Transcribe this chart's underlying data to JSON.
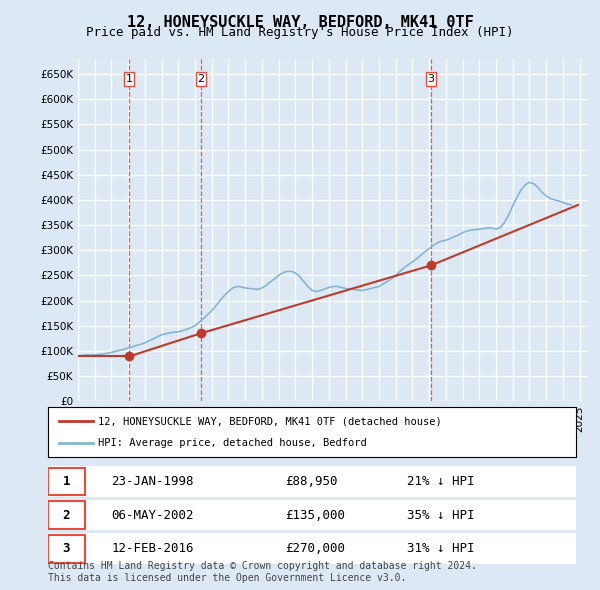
{
  "title": "12, HONEYSUCKLE WAY, BEDFORD, MK41 0TF",
  "subtitle": "Price paid vs. HM Land Registry's House Price Index (HPI)",
  "background_color": "#dce9f5",
  "plot_bg_color": "#dce9f5",
  "grid_color": "#ffffff",
  "ylabel": "",
  "ylim": [
    0,
    680000
  ],
  "yticks": [
    0,
    50000,
    100000,
    150000,
    200000,
    250000,
    300000,
    350000,
    400000,
    450000,
    500000,
    550000,
    600000,
    650000
  ],
  "ytick_labels": [
    "£0",
    "£50K",
    "£100K",
    "£150K",
    "£200K",
    "£250K",
    "£300K",
    "£350K",
    "£400K",
    "£450K",
    "£500K",
    "£550K",
    "£600K",
    "£650K"
  ],
  "red_line_color": "#c0392b",
  "blue_line_color": "#85b4d4",
  "dashed_line_color": "#e74c3c",
  "sale_points": [
    {
      "date_idx": 3.1,
      "price": 88950,
      "label": "1",
      "date_str": "23-JAN-1998"
    },
    {
      "date_idx": 7.4,
      "price": 135000,
      "label": "2",
      "date_str": "06-MAY-2002"
    },
    {
      "date_idx": 21.1,
      "price": 270000,
      "label": "3",
      "date_str": "12-FEB-2016"
    }
  ],
  "legend_line1": "12, HONEYSUCKLE WAY, BEDFORD, MK41 0TF (detached house)",
  "legend_line2": "HPI: Average price, detached house, Bedford",
  "table_data": [
    {
      "num": "1",
      "date": "23-JAN-1998",
      "price": "£88,950",
      "hpi": "21% ↓ HPI"
    },
    {
      "num": "2",
      "date": "06-MAY-2002",
      "price": "£135,000",
      "hpi": "35% ↓ HPI"
    },
    {
      "num": "3",
      "date": "12-FEB-2016",
      "price": "£270,000",
      "hpi": "31% ↓ HPI"
    }
  ],
  "footer": "Contains HM Land Registry data © Crown copyright and database right 2024.\nThis data is licensed under the Open Government Licence v3.0.",
  "x_start_year": 1995,
  "x_end_year": 2025,
  "hpi_data_x": [
    1995.0,
    1995.25,
    1995.5,
    1995.75,
    1996.0,
    1996.25,
    1996.5,
    1996.75,
    1997.0,
    1997.25,
    1997.5,
    1997.75,
    1998.0,
    1998.25,
    1998.5,
    1998.75,
    1999.0,
    1999.25,
    1999.5,
    1999.75,
    2000.0,
    2000.25,
    2000.5,
    2000.75,
    2001.0,
    2001.25,
    2001.5,
    2001.75,
    2002.0,
    2002.25,
    2002.5,
    2002.75,
    2003.0,
    2003.25,
    2003.5,
    2003.75,
    2004.0,
    2004.25,
    2004.5,
    2004.75,
    2005.0,
    2005.25,
    2005.5,
    2005.75,
    2006.0,
    2006.25,
    2006.5,
    2006.75,
    2007.0,
    2007.25,
    2007.5,
    2007.75,
    2008.0,
    2008.25,
    2008.5,
    2008.75,
    2009.0,
    2009.25,
    2009.5,
    2009.75,
    2010.0,
    2010.25,
    2010.5,
    2010.75,
    2011.0,
    2011.25,
    2011.5,
    2011.75,
    2012.0,
    2012.25,
    2012.5,
    2012.75,
    2013.0,
    2013.25,
    2013.5,
    2013.75,
    2014.0,
    2014.25,
    2014.5,
    2014.75,
    2015.0,
    2015.25,
    2015.5,
    2015.75,
    2016.0,
    2016.25,
    2016.5,
    2016.75,
    2017.0,
    2017.25,
    2017.5,
    2017.75,
    2018.0,
    2018.25,
    2018.5,
    2018.75,
    2019.0,
    2019.25,
    2019.5,
    2019.75,
    2020.0,
    2020.25,
    2020.5,
    2020.75,
    2021.0,
    2021.25,
    2021.5,
    2021.75,
    2022.0,
    2022.25,
    2022.5,
    2022.75,
    2023.0,
    2023.25,
    2023.5,
    2023.75,
    2024.0,
    2024.25,
    2024.5
  ],
  "hpi_data_y": [
    90000,
    91000,
    92000,
    91500,
    92000,
    93000,
    94000,
    95000,
    97000,
    99000,
    101000,
    103000,
    106000,
    108000,
    111000,
    113000,
    116000,
    120000,
    124000,
    128000,
    132000,
    134000,
    136000,
    137000,
    138000,
    140000,
    143000,
    146000,
    150000,
    157000,
    164000,
    172000,
    180000,
    190000,
    200000,
    210000,
    218000,
    225000,
    228000,
    227000,
    225000,
    224000,
    223000,
    222000,
    225000,
    230000,
    237000,
    243000,
    250000,
    255000,
    258000,
    258000,
    255000,
    248000,
    238000,
    228000,
    220000,
    218000,
    220000,
    223000,
    226000,
    228000,
    228000,
    226000,
    224000,
    223000,
    222000,
    221000,
    220000,
    222000,
    224000,
    226000,
    228000,
    233000,
    238000,
    243000,
    250000,
    258000,
    265000,
    271000,
    277000,
    283000,
    290000,
    297000,
    303000,
    310000,
    315000,
    318000,
    320000,
    323000,
    327000,
    330000,
    335000,
    338000,
    340000,
    341000,
    342000,
    343000,
    344000,
    344000,
    342000,
    345000,
    355000,
    370000,
    388000,
    405000,
    420000,
    430000,
    435000,
    432000,
    425000,
    415000,
    408000,
    403000,
    400000,
    398000,
    395000,
    392000,
    390000
  ],
  "price_paid_x": [
    1995.0,
    1998.06,
    2002.35,
    2016.12,
    2024.9
  ],
  "price_paid_y": [
    88950,
    88950,
    135000,
    270000,
    390000
  ],
  "price_paid_segments": [
    {
      "x": [
        1995.0,
        1998.06
      ],
      "y": [
        88950,
        88950
      ]
    },
    {
      "x": [
        1998.06,
        2002.35
      ],
      "y": [
        88950,
        135000
      ]
    },
    {
      "x": [
        2002.35,
        2016.12
      ],
      "y": [
        135000,
        270000
      ]
    },
    {
      "x": [
        2016.12,
        2024.9
      ],
      "y": [
        270000,
        390000
      ]
    }
  ]
}
